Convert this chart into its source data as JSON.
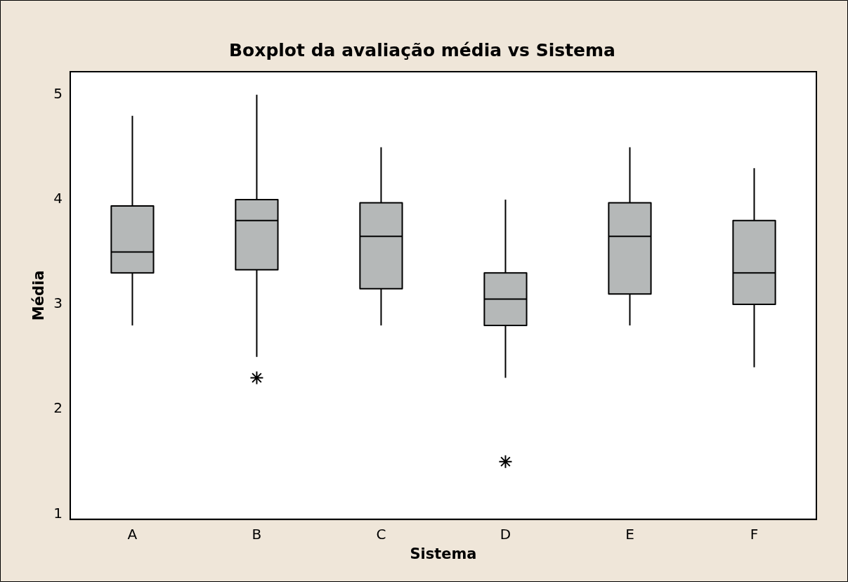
{
  "chart_data": {
    "type": "box",
    "title": "Boxplot da avaliação média vs Sistema",
    "xlabel": "Sistema",
    "ylabel": "Média",
    "categories": [
      "A",
      "B",
      "C",
      "D",
      "E",
      "F"
    ],
    "color": "#b5b8b8",
    "boxes": [
      {
        "low": 2.8,
        "q1": 3.3,
        "median": 3.5,
        "q3": 3.94,
        "high": 4.8
      },
      {
        "low": 2.5,
        "q1": 3.33,
        "median": 3.8,
        "q3": 4.0,
        "high": 5.0,
        "outliers": [
          2.3
        ]
      },
      {
        "low": 2.8,
        "q1": 3.15,
        "median": 3.65,
        "q3": 3.97,
        "high": 4.5
      },
      {
        "low": 2.3,
        "q1": 2.8,
        "median": 3.05,
        "q3": 3.3,
        "high": 4.0,
        "outliers": [
          1.5
        ]
      },
      {
        "low": 2.8,
        "q1": 3.1,
        "median": 3.65,
        "q3": 3.97,
        "high": 4.5
      },
      {
        "low": 2.4,
        "q1": 3.0,
        "median": 3.3,
        "q3": 3.8,
        "high": 4.3
      }
    ],
    "ylim": [
      0.95,
      5.22
    ],
    "yticks": [
      1,
      2,
      3,
      4,
      5
    ],
    "grid": false,
    "legend": false
  }
}
